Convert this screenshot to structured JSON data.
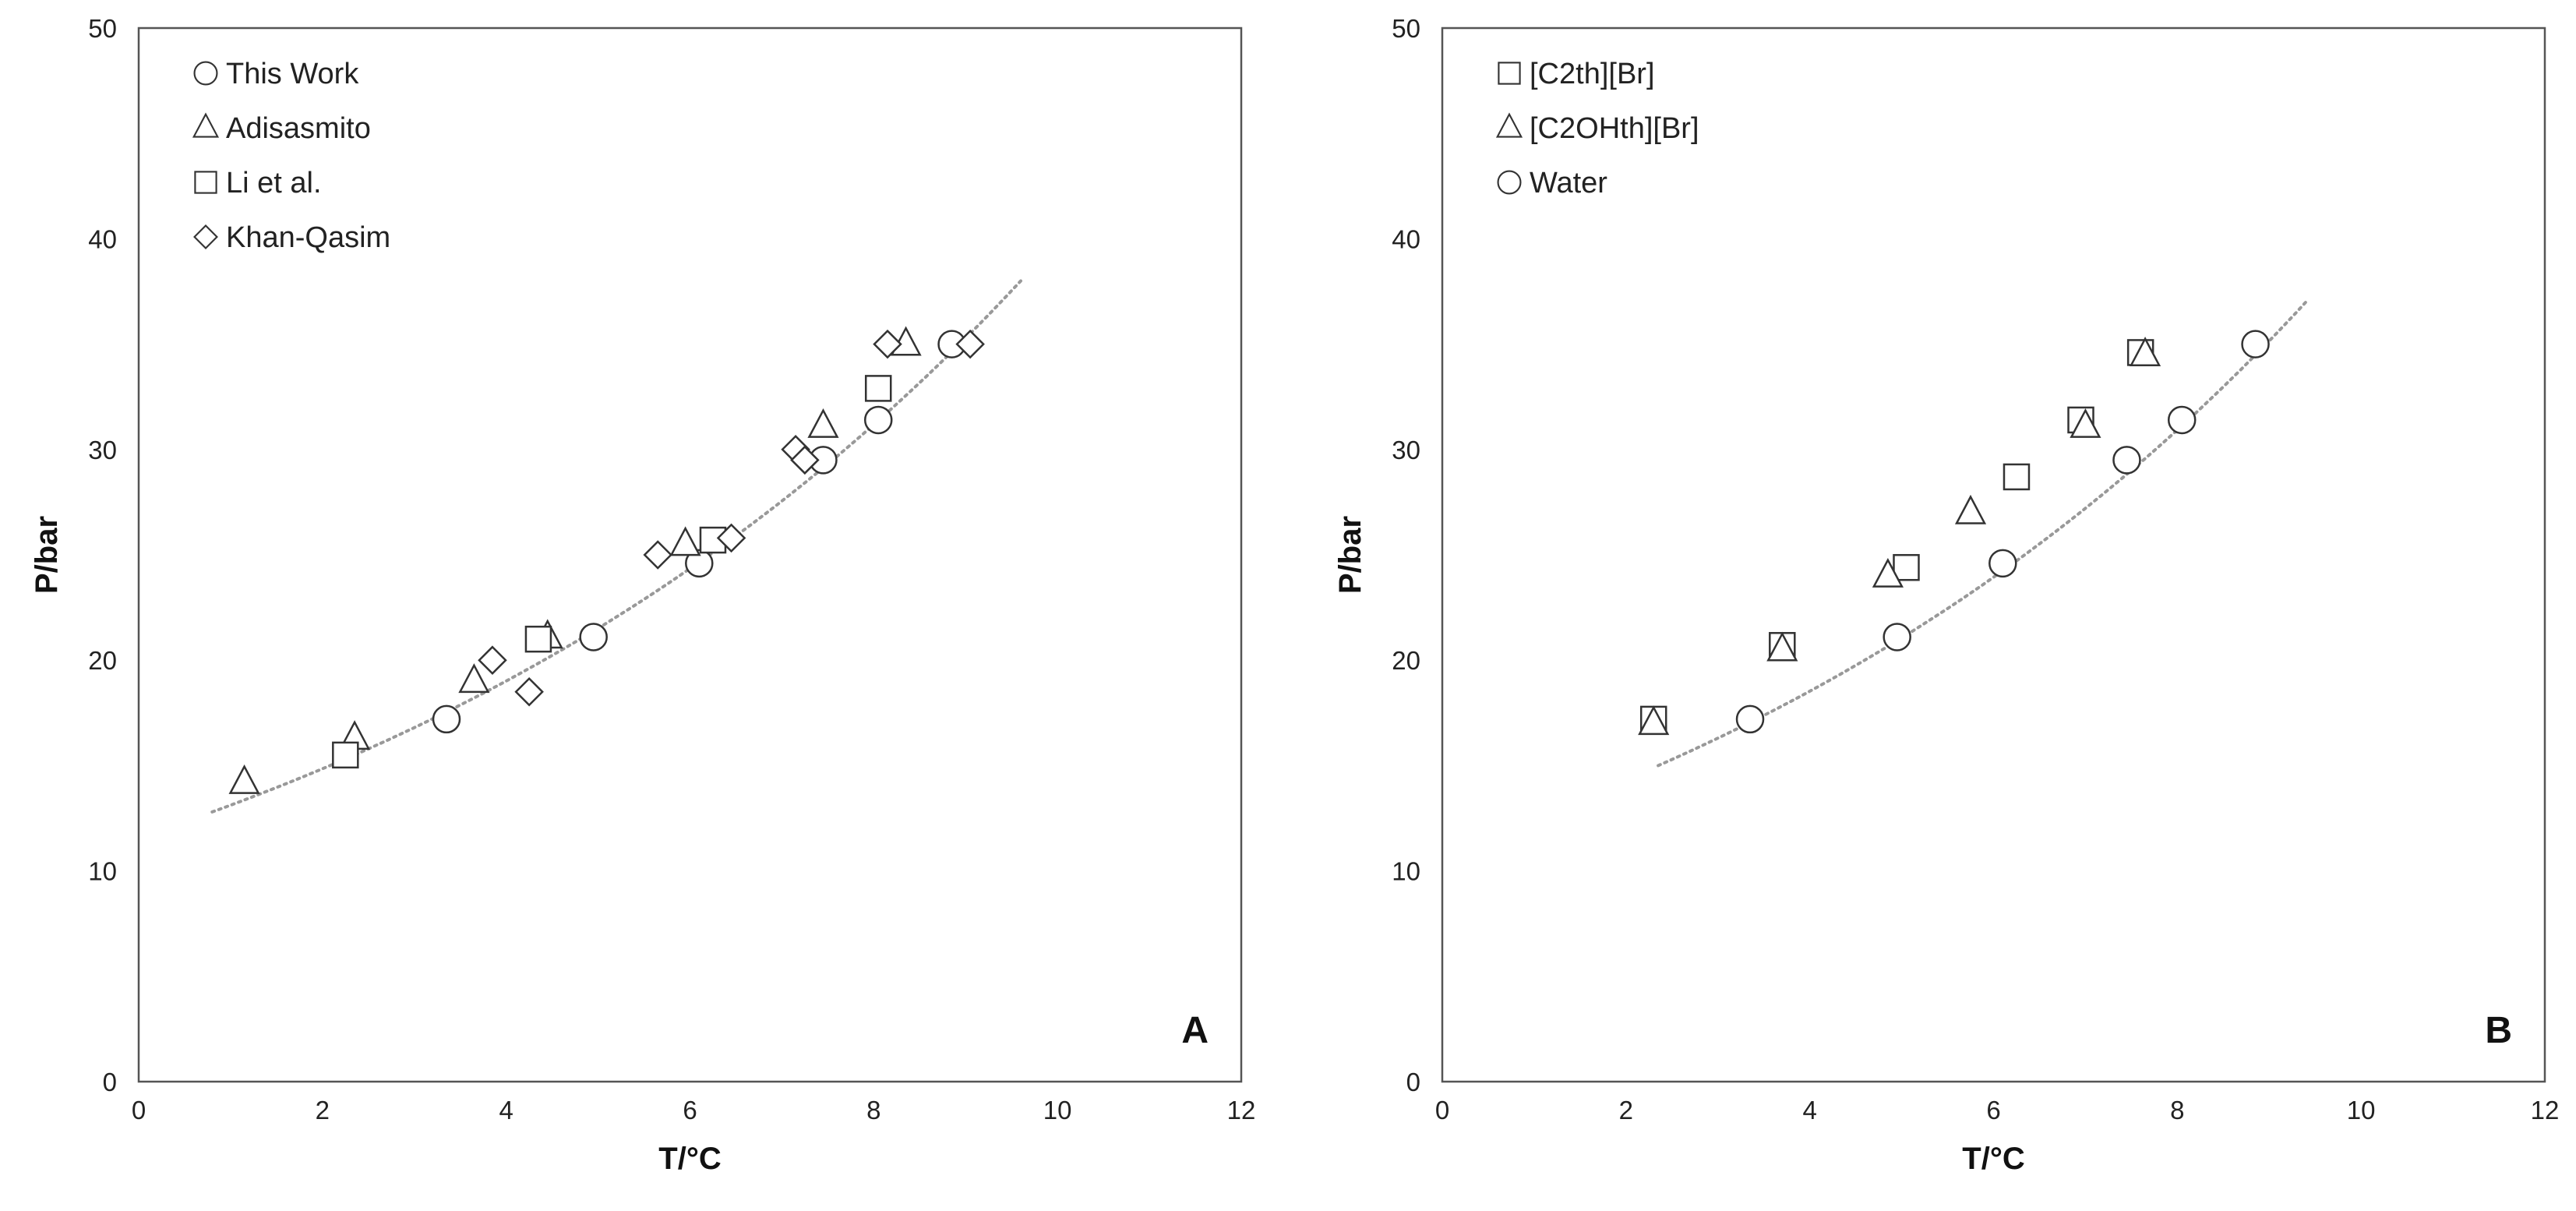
{
  "chart_data": [
    {
      "type": "scatter",
      "panel_label": "A",
      "xlabel": "T/°C",
      "ylabel": "P/bar",
      "xlim": [
        0,
        12
      ],
      "ylim": [
        0,
        50
      ],
      "xticks": [
        "0",
        "2",
        "4",
        "6",
        "8",
        "10",
        "12"
      ],
      "yticks": [
        "0",
        "10",
        "20",
        "30",
        "40",
        "50"
      ],
      "grid": false,
      "legend_position": "top-left",
      "series": [
        {
          "name": "This Work",
          "marker": "circle",
          "x": [
            3.35,
            4.95,
            6.1,
            7.45,
            8.05,
            8.85
          ],
          "y": [
            17.2,
            21.1,
            24.6,
            29.5,
            31.4,
            35.0
          ]
        },
        {
          "name": "Adisasmito",
          "marker": "triangle",
          "x": [
            1.15,
            2.35,
            3.65,
            4.45,
            5.95,
            7.45,
            8.35
          ],
          "y": [
            14.2,
            16.3,
            19.0,
            21.1,
            25.5,
            31.1,
            35.0
          ]
        },
        {
          "name": "Li et al.",
          "marker": "square",
          "x": [
            2.25,
            4.35,
            6.25,
            8.05
          ],
          "y": [
            15.5,
            21.0,
            25.7,
            32.9
          ]
        },
        {
          "name": "Khan-Qasim",
          "marker": "diamond",
          "x": [
            3.85,
            4.25,
            5.65,
            6.45,
            7.15,
            7.25,
            8.15,
            9.05
          ],
          "y": [
            20.0,
            18.5,
            25.0,
            25.8,
            30.0,
            29.5,
            35.0,
            35.0
          ]
        }
      ],
      "trendline": {
        "x": [
          0.8,
          9.6
        ],
        "y": [
          12.8,
          38.0
        ]
      }
    },
    {
      "type": "scatter",
      "panel_label": "B",
      "xlabel": "T/°C",
      "ylabel": "P/bar",
      "xlim": [
        0,
        12
      ],
      "ylim": [
        0,
        50
      ],
      "xticks": [
        "0",
        "2",
        "4",
        "6",
        "8",
        "10",
        "12"
      ],
      "yticks": [
        "0",
        "10",
        "20",
        "30",
        "40",
        "50"
      ],
      "grid": false,
      "legend_position": "top-left",
      "series": [
        {
          "name": "[C2th][Br]",
          "marker": "square",
          "x": [
            2.3,
            3.7,
            5.05,
            6.25,
            6.95,
            7.6
          ],
          "y": [
            17.2,
            20.7,
            24.4,
            28.7,
            31.4,
            34.6
          ]
        },
        {
          "name": "[C2OHth][Br]",
          "marker": "triangle",
          "x": [
            2.3,
            3.7,
            4.85,
            5.75,
            7.0,
            7.65
          ],
          "y": [
            17.0,
            20.5,
            24.0,
            27.0,
            31.1,
            34.5
          ]
        },
        {
          "name": "Water",
          "marker": "circle",
          "x": [
            3.35,
            4.95,
            6.1,
            7.45,
            8.05,
            8.85
          ],
          "y": [
            17.2,
            21.1,
            24.6,
            29.5,
            31.4,
            35.0
          ]
        }
      ],
      "trendline": {
        "x": [
          2.35,
          9.4
        ],
        "y": [
          15.0,
          37.0
        ]
      }
    }
  ]
}
